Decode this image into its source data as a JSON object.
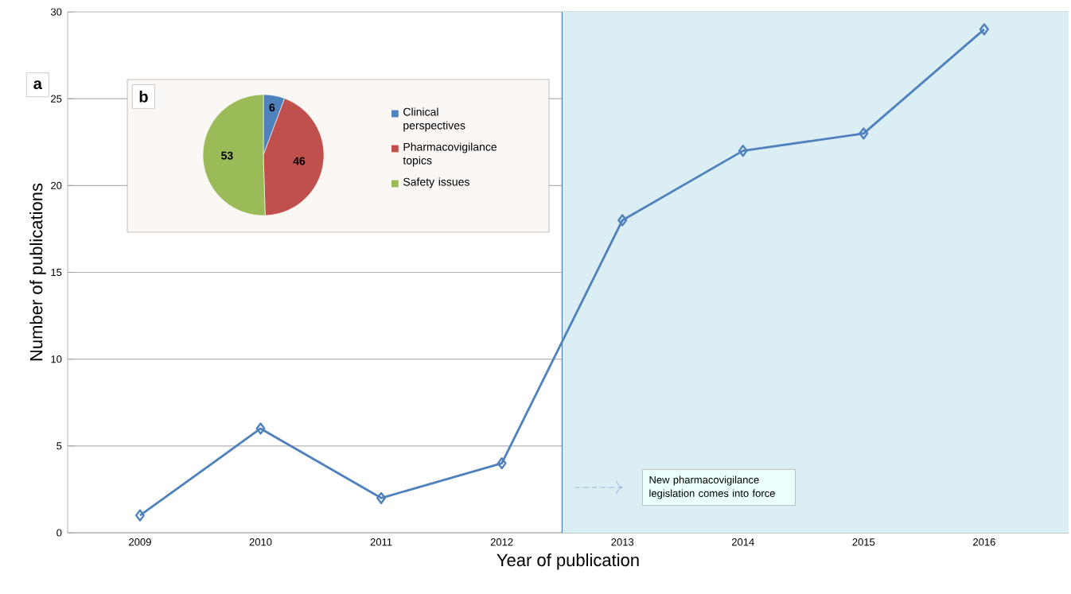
{
  "chart_data": [
    {
      "type": "line",
      "xlabel": "Year of publication",
      "ylabel": "Number of publications",
      "x": [
        2009,
        2010,
        2011,
        2012,
        2013,
        2014,
        2015,
        2016
      ],
      "series": [
        {
          "color": "#4f81bd",
          "values": [
            1,
            6,
            2,
            4,
            18,
            22,
            23,
            29
          ]
        }
      ],
      "xlim": [
        2008.4,
        2016.7
      ],
      "xticks": [
        2009,
        2010,
        2011,
        2012,
        2013,
        2014,
        2015,
        2016
      ],
      "ylim": [
        0,
        30
      ],
      "yticks": [
        0,
        5,
        10,
        15,
        20,
        25,
        30
      ],
      "grid": "y",
      "marker": "diamond",
      "line_style": "solid",
      "ref_lines": [
        {
          "axis": "x",
          "value": 2012.5,
          "color": "#4f81bd"
        }
      ],
      "bands": [
        {
          "axis": "x",
          "from": 2012.5,
          "to": 2016.7,
          "color": "#dbeef4",
          "label": "New pharmacovigilance legislation comes into force"
        }
      ],
      "annotations": [
        "a"
      ]
    },
    {
      "type": "pie",
      "categories": [
        "Clinical perspectives",
        "Pharmacovigilance topics",
        "Safety issues"
      ],
      "values": [
        6,
        46,
        53
      ],
      "colors": [
        "#4f81bd",
        "#c0504d",
        "#9bbb59"
      ],
      "data_labels": true,
      "legend": "right",
      "annotations": [
        "b"
      ]
    }
  ]
}
